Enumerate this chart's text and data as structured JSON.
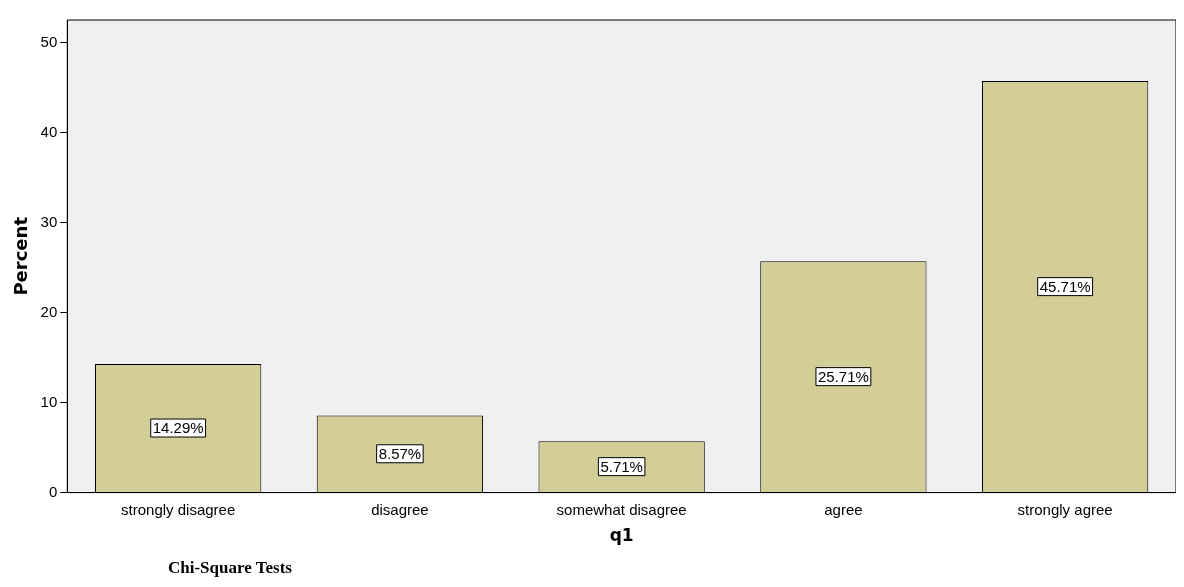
{
  "chart_data": {
    "type": "bar",
    "xlabel": "q1",
    "ylabel": "Percent",
    "categories": [
      "strongly disagree",
      "disagree",
      "somewhat disagree",
      "agree",
      "strongly agree"
    ],
    "values": [
      14.29,
      8.57,
      5.71,
      25.71,
      45.71
    ],
    "value_labels": [
      "14.29%",
      "8.57%",
      "5.71%",
      "25.71%",
      "45.71%"
    ],
    "color": "#d3ce97",
    "ylim": [
      0,
      52.5
    ],
    "yticks": [
      0,
      10,
      20,
      30,
      40,
      50
    ],
    "grid": false,
    "legend": false,
    "annotations": [
      "Chi-Square Tests"
    ]
  }
}
